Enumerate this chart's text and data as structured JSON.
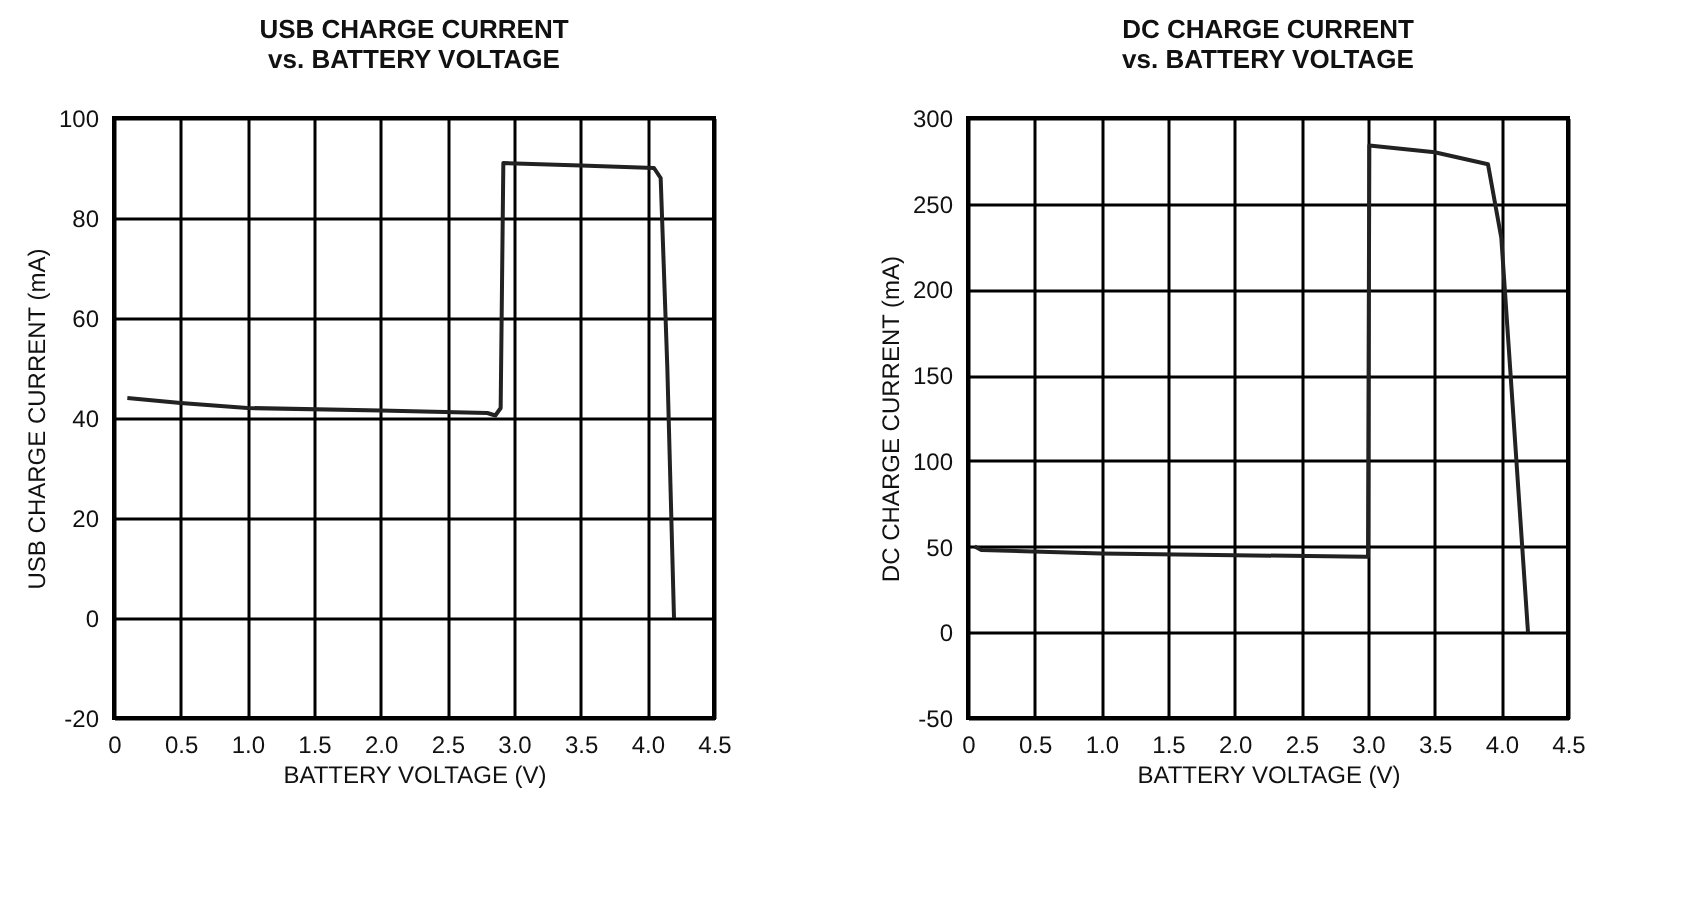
{
  "chart_data": [
    {
      "type": "line",
      "title": "USB CHARGE CURRENT\nvs. BATTERY VOLTAGE",
      "xlabel": "BATTERY VOLTAGE (V)",
      "ylabel": "USB CHARGE CURRENT (mA)",
      "xlim": [
        0,
        4.5
      ],
      "ylim": [
        -20,
        100
      ],
      "xticks": [
        0,
        0.5,
        {
          "value": 1,
          "label": "1.0"
        },
        1.5,
        {
          "value": 2,
          "label": "2.0"
        },
        2.5,
        {
          "value": 3,
          "label": "3.0"
        },
        3.5,
        {
          "value": 4,
          "label": "4.0"
        },
        4.5
      ],
      "yticks": [
        -20,
        0,
        20,
        40,
        60,
        80,
        100
      ],
      "grid": true,
      "line_style": "solid",
      "series": [
        {
          "color": "#222222",
          "x": [
            0.1,
            0.5,
            1.0,
            2.0,
            2.8,
            2.86,
            2.9,
            2.92,
            3.5,
            4.05,
            4.1,
            4.15,
            4.2
          ],
          "values": [
            44,
            43,
            42,
            41.5,
            41,
            40.5,
            42,
            91,
            90.5,
            90,
            88,
            50,
            0
          ]
        }
      ]
    },
    {
      "type": "line",
      "title": "DC CHARGE CURRENT\nvs. BATTERY VOLTAGE",
      "xlabel": "BATTERY VOLTAGE (V)",
      "ylabel": "DC CHARGE CURRENT (mA)",
      "xlim": [
        0,
        4.5
      ],
      "ylim": [
        -50,
        300
      ],
      "xticks": [
        0,
        0.5,
        {
          "value": 1,
          "label": "1.0"
        },
        1.5,
        {
          "value": 2,
          "label": "2.0"
        },
        2.5,
        {
          "value": 3,
          "label": "3.0"
        },
        3.5,
        {
          "value": 4,
          "label": "4.0"
        },
        4.5
      ],
      "yticks": [
        -50,
        0,
        50,
        100,
        150,
        200,
        250,
        300
      ],
      "grid": true,
      "line_style": "solid",
      "series": [
        {
          "color": "#222222",
          "x": [
            0.05,
            0.1,
            1.0,
            2.0,
            2.98,
            3.0,
            3.01,
            3.5,
            3.9,
            4.0,
            4.2
          ],
          "values": [
            50,
            48,
            46,
            45,
            44,
            44,
            284,
            280,
            273,
            230,
            0
          ]
        }
      ]
    }
  ]
}
